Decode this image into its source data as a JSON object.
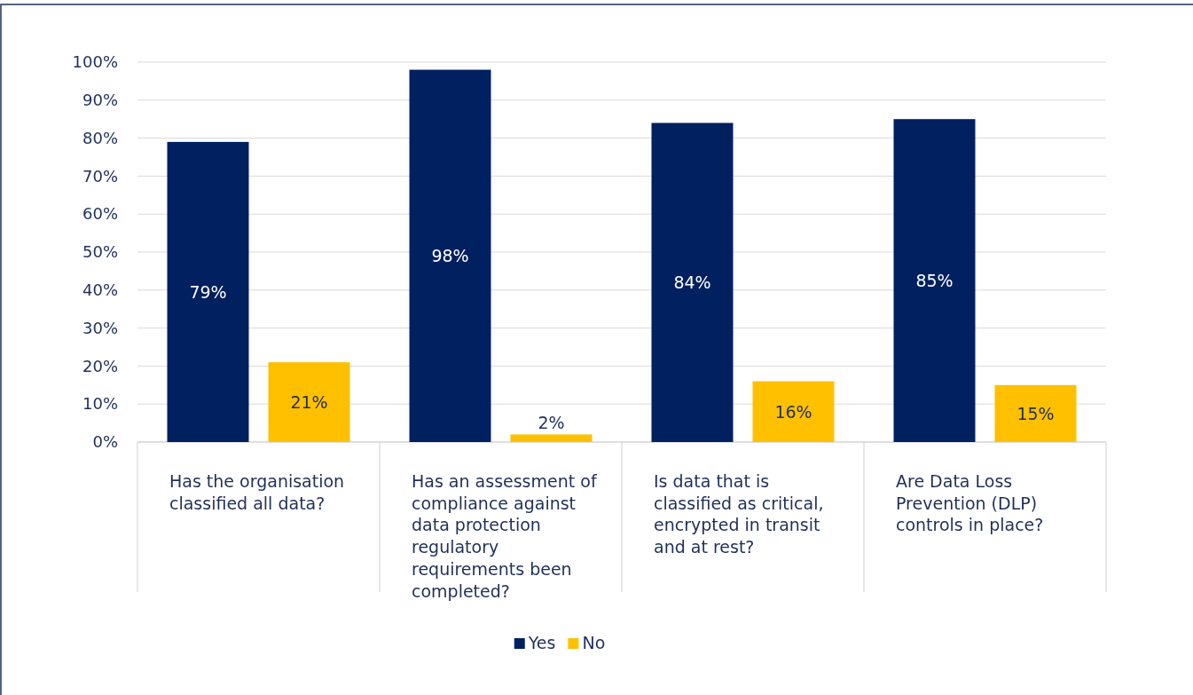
{
  "chart_data": {
    "type": "bar",
    "categories": [
      "Has the organisation classified all data?",
      "Has an assessment of compliance against data protection regulatory requirements been completed?",
      "Is data that is classified as critical, encrypted in transit and at rest?",
      "Are Data Loss Prevention (DLP) controls in place?"
    ],
    "series": [
      {
        "name": "Yes",
        "color": "#002060",
        "values": [
          79,
          98,
          84,
          85
        ],
        "value_labels": [
          "79%",
          "98%",
          "84%",
          "85%"
        ]
      },
      {
        "name": "No",
        "color": "#ffc000",
        "values": [
          21,
          2,
          16,
          15
        ],
        "value_labels": [
          "21%",
          "2%",
          "16%",
          "15%"
        ]
      }
    ],
    "ylim": [
      0,
      100
    ],
    "yticks": [
      {
        "value": 0,
        "label": "0%"
      },
      {
        "value": 10,
        "label": "10%"
      },
      {
        "value": 20,
        "label": "20%"
      },
      {
        "value": 30,
        "label": "30%"
      },
      {
        "value": 40,
        "label": "40%"
      },
      {
        "value": 50,
        "label": "50%"
      },
      {
        "value": 60,
        "label": "60%"
      },
      {
        "value": 70,
        "label": "70%"
      },
      {
        "value": 80,
        "label": "80%"
      },
      {
        "value": 90,
        "label": "90%"
      },
      {
        "value": 100,
        "label": "100%"
      }
    ],
    "grid": "y",
    "legend": "bottom"
  }
}
